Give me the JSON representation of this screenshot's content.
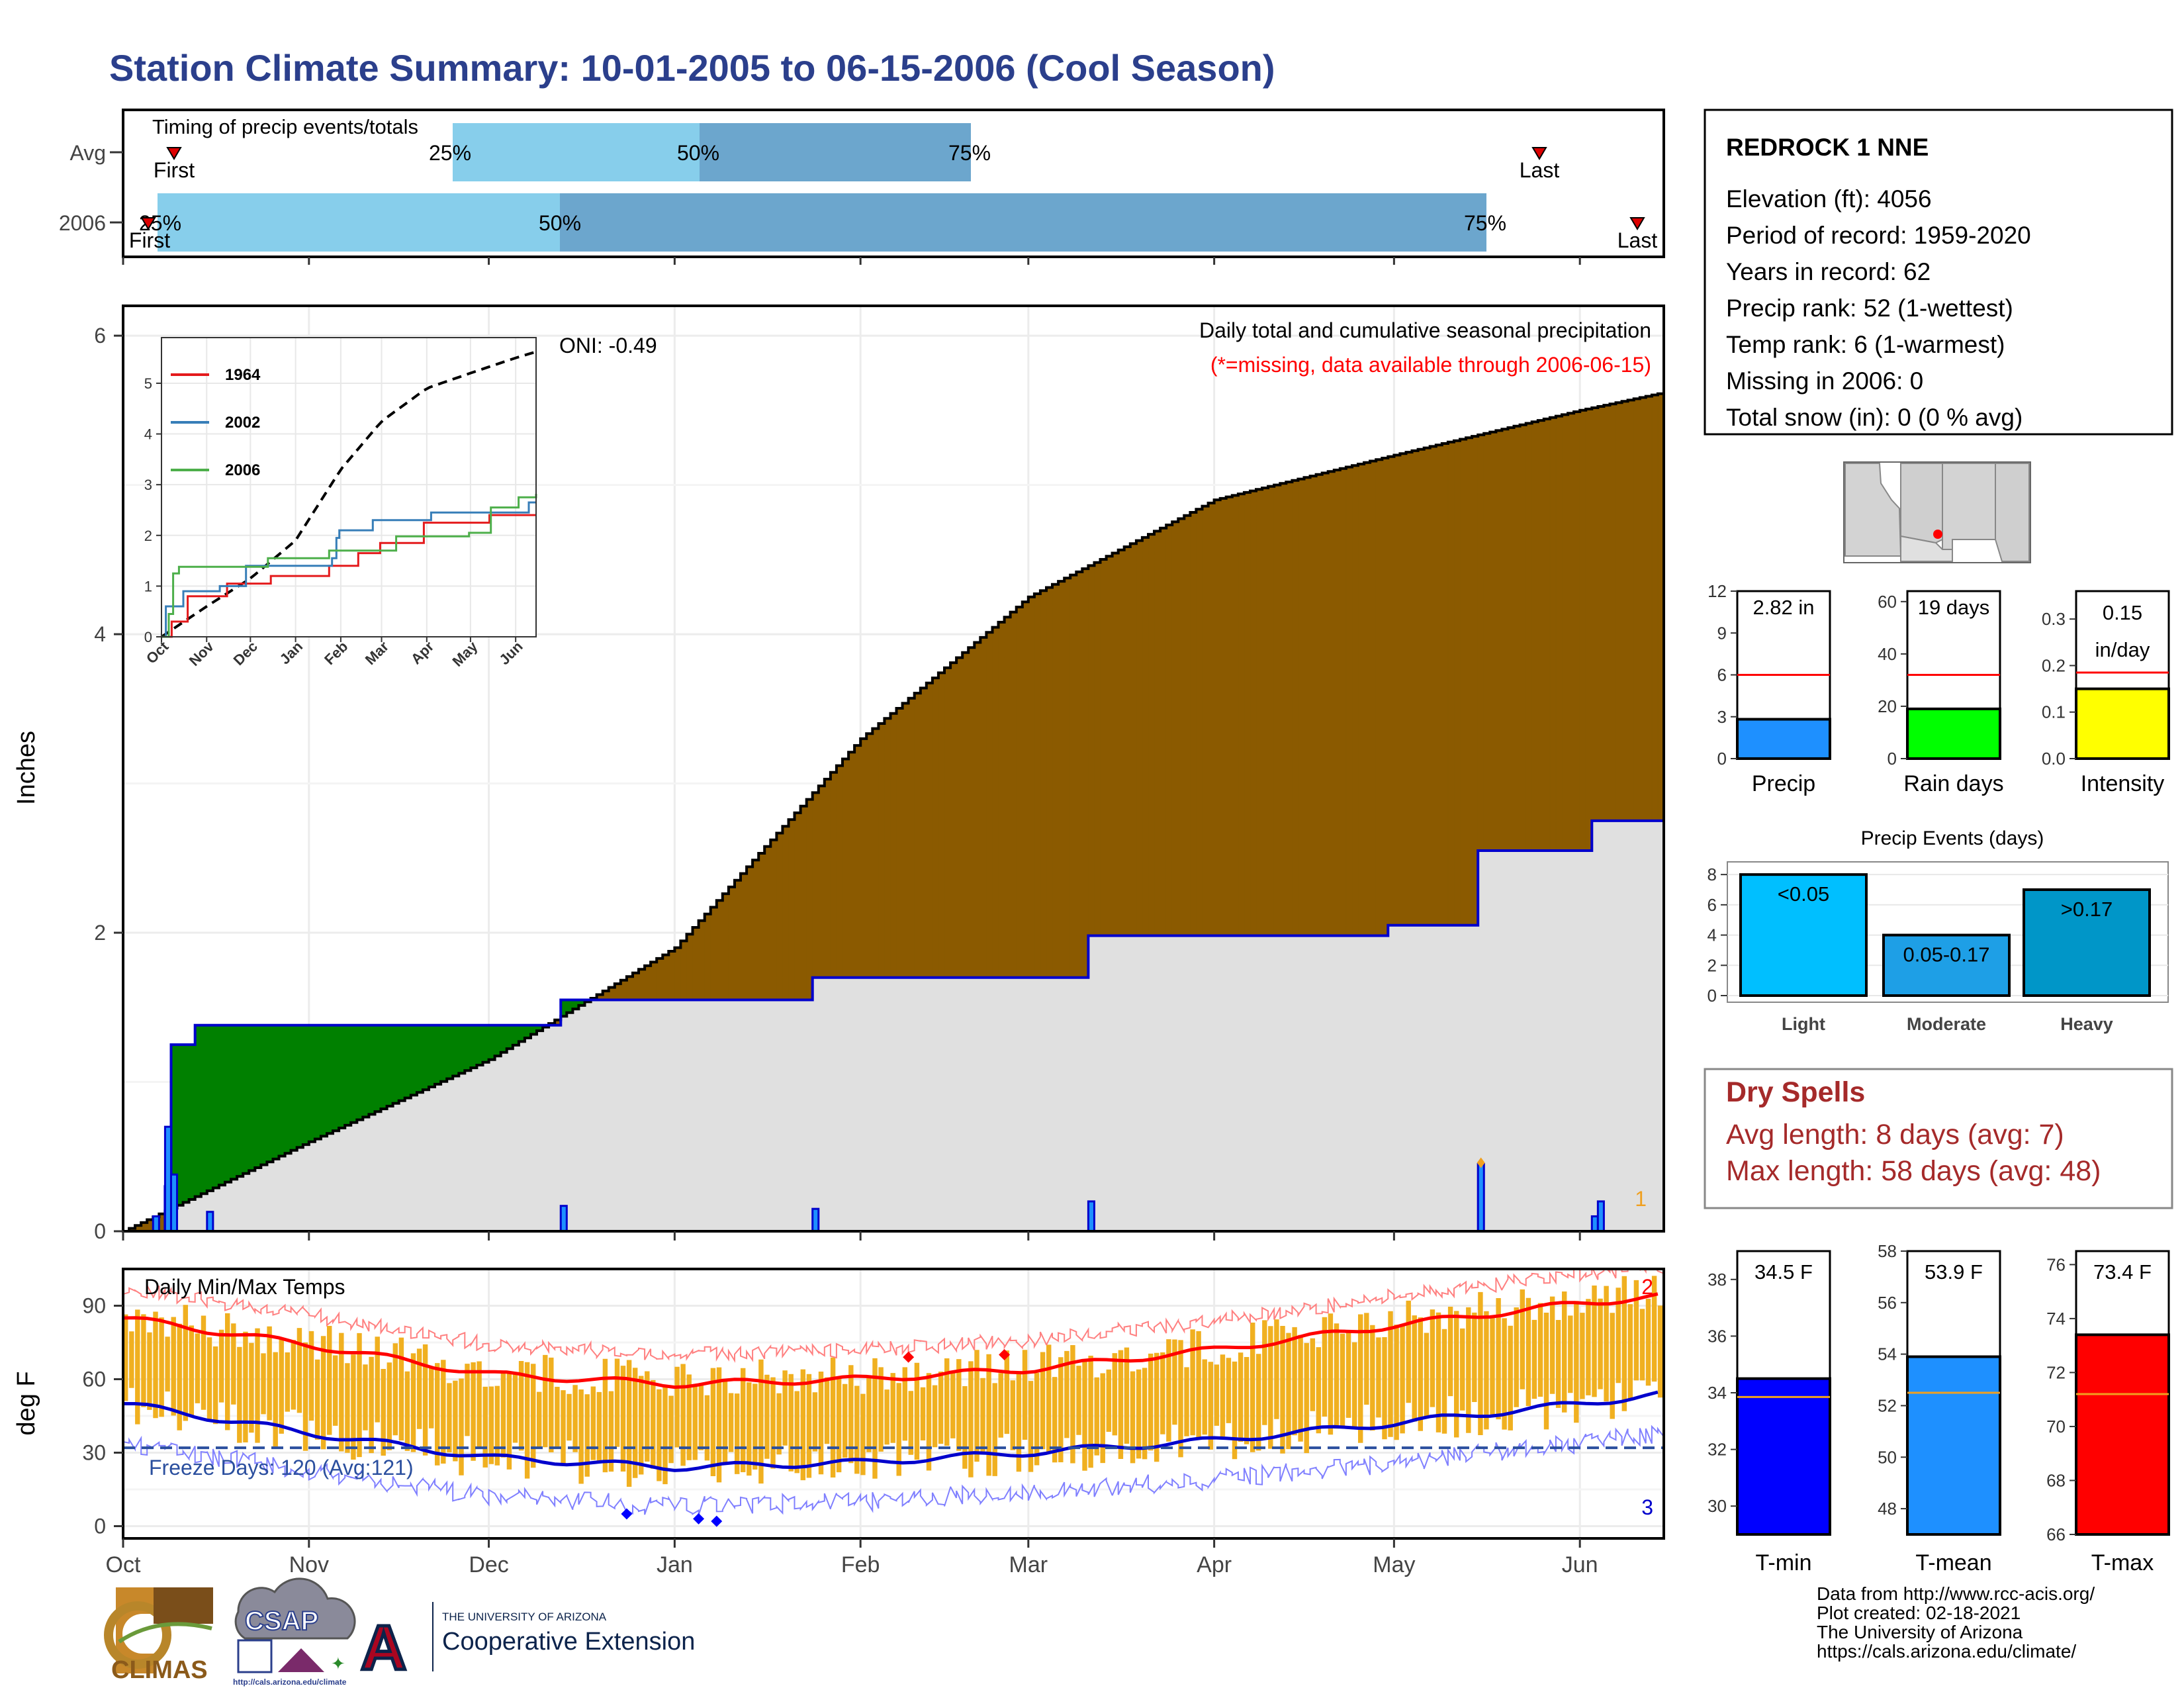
{
  "title": "Station Climate Summary: 10-01-2005 to 06-15-2006 (Cool Season)",
  "colors": {
    "title": "#2b3f8c",
    "cum_avg_fill": "#8b5a00",
    "cum_obs_area": "#e0e0e0",
    "surplus_fill": "#008000",
    "obs_line": "#0000cc",
    "timing_light": "#87ceeb",
    "timing_dark": "#6ca6cd",
    "temp_bars": "#f0b020",
    "max_avg_line": "#ff0000",
    "min_avg_line": "#0000cc",
    "precip_panel": "#1e90ff",
    "raindays_panel": "#00ff00",
    "intensity_panel": "#ffff00",
    "events_light": "#00bfff",
    "events_moderate": "#1e9fe6",
    "events_heavy": "#0096c8",
    "tmin_panel": "#0000ff",
    "tmean_panel": "#1e90ff",
    "tmax_panel": "#ff0000",
    "dry_spells": "#a52a2a"
  },
  "timing": {
    "title": "Timing of precip events/totals",
    "rows": [
      {
        "label": "Avg",
        "first_label": "First",
        "last_label": "Last",
        "p25": "25%",
        "p50": "50%",
        "p75": "75%"
      },
      {
        "label": "2006",
        "first_label": "First",
        "last_label": "Last",
        "p25": "25%",
        "p50": "50%",
        "p75": "75%"
      }
    ]
  },
  "precip_panel": {
    "ylabel": "Inches",
    "yticks": [
      "0",
      "2",
      "4",
      "6"
    ],
    "subtitle": "Daily total and cumulative seasonal precipitation",
    "note": "(*=missing, data available through 2006-06-15)",
    "oni": "ONI: -0.49",
    "corner_label": "1"
  },
  "inset": {
    "yticks": [
      "0",
      "1",
      "2",
      "3",
      "4",
      "5"
    ],
    "xticks": [
      "Oct",
      "Nov",
      "Dec",
      "Jan",
      "Feb",
      "Mar",
      "Apr",
      "May",
      "Jun"
    ],
    "legend": [
      {
        "name": "1964",
        "color": "#e41a1c"
      },
      {
        "name": "2002",
        "color": "#377eb8"
      },
      {
        "name": "2006",
        "color": "#4daf4a"
      }
    ]
  },
  "temp_panel": {
    "title": "Daily Min/Max Temps",
    "ylabel": "deg F",
    "yticks": [
      "0",
      "30",
      "60",
      "90"
    ],
    "freeze": "Freeze Days: 120 (Avg:121)",
    "label_max": "2",
    "label_min": "3"
  },
  "month_ticks": [
    "Oct",
    "Nov",
    "Dec",
    "Jan",
    "Feb",
    "Mar",
    "Apr",
    "May",
    "Jun"
  ],
  "station": {
    "name": "REDROCK 1 NNE",
    "lines": [
      "Elevation (ft): 4056",
      "Period of record: 1959-2020",
      "Years in record: 62",
      "Precip rank: 52 (1-wettest)",
      "Temp rank: 6 (1-warmest)",
      "Missing in 2006: 0",
      "Total snow (in): 0 (0 % avg)"
    ]
  },
  "summary_bars": [
    {
      "label": "Precip",
      "value_text": "2.82 in",
      "value": 2.82,
      "avg": 6.0,
      "yticks": [
        "0",
        "3",
        "6",
        "9",
        "12"
      ],
      "ymax": 12
    },
    {
      "label": "Rain days",
      "value_text": "19 days",
      "value": 19,
      "avg": 32,
      "yticks": [
        "0",
        "20",
        "40",
        "60"
      ],
      "ymax": 64
    },
    {
      "label": "Intensity",
      "value_text": "0.15",
      "value_text2": "in/day",
      "value": 0.15,
      "avg": 0.185,
      "yticks": [
        "0.0",
        "0.1",
        "0.2",
        "0.3"
      ],
      "ymax": 0.36
    }
  ],
  "events": {
    "title": "Precip Events (days)",
    "yticks": [
      "0",
      "2",
      "4",
      "6",
      "8"
    ],
    "bars": [
      {
        "label": "Light",
        "range": "<0.05",
        "value": 8
      },
      {
        "label": "Moderate",
        "range": "0.05-0.17",
        "value": 4
      },
      {
        "label": "Heavy",
        "range": ">0.17",
        "value": 7
      }
    ]
  },
  "dry_spells": {
    "title": "Dry Spells",
    "avg_line": "Avg length: 8 days (avg: 7)",
    "max_line": "Max length: 58 days (avg: 48)"
  },
  "temp_bars": [
    {
      "label": "T-min",
      "value_text": "34.5 F",
      "value": 34.5,
      "avg": 33.85,
      "yticks": [
        "30",
        "32",
        "34",
        "36",
        "38"
      ],
      "ymin": 29,
      "ymax": 39
    },
    {
      "label": "T-mean",
      "value_text": "53.9 F",
      "value": 53.9,
      "avg": 52.5,
      "yticks": [
        "48",
        "50",
        "52",
        "54",
        "56",
        "58"
      ],
      "ymin": 47,
      "ymax": 58
    },
    {
      "label": "T-max",
      "value_text": "73.4 F",
      "value": 73.4,
      "avg": 71.2,
      "yticks": [
        "66",
        "68",
        "70",
        "72",
        "74",
        "76"
      ],
      "ymin": 66,
      "ymax": 76.5
    }
  ],
  "footer": [
    "Data from http://www.rcc-acis.org/",
    "Plot created: 02-18-2021",
    "The University of Arizona",
    "https://cals.arizona.edu/climate/"
  ],
  "logos": {
    "climas": "CLIMAS",
    "csap": "CSAP",
    "csap_url": "http://cals.arizona.edu/climate",
    "ua_small": "THE UNIVERSITY OF ARIZONA",
    "ua_big": "Cooperative Extension"
  },
  "chart_data": [
    {
      "type": "area",
      "title": "Daily total and cumulative seasonal precipitation",
      "ylabel": "Inches",
      "ylim": [
        0,
        6.2
      ],
      "x_range": [
        "2005-10-01",
        "2006-06-15"
      ],
      "cumulative_avg": {
        "x": [
          "2005-10-01",
          "2005-11-01",
          "2005-12-01",
          "2006-01-01",
          "2006-02-01",
          "2006-03-01",
          "2006-04-01",
          "2006-05-01",
          "2006-06-01",
          "2006-06-15"
        ],
        "y": [
          0,
          0.6,
          1.15,
          1.9,
          3.3,
          4.25,
          4.9,
          5.2,
          5.5,
          5.62
        ]
      },
      "cumulative_2006": {
        "x": [
          "2005-10-01",
          "2005-10-08",
          "2005-10-09",
          "2005-10-13",
          "2005-12-13",
          "2006-01-24",
          "2006-03-11",
          "2006-04-30",
          "2006-05-15",
          "2006-06-03",
          "2006-06-15"
        ],
        "y": [
          0,
          0.3,
          1.25,
          1.38,
          1.55,
          1.7,
          1.98,
          2.05,
          2.55,
          2.75,
          2.82
        ]
      },
      "daily_precip": {
        "x": [
          "2005-10-06",
          "2005-10-08",
          "2005-10-09",
          "2005-10-15",
          "2005-12-13",
          "2006-01-24",
          "2006-03-11",
          "2006-05-15",
          "2006-06-03",
          "2006-06-04"
        ],
        "y": [
          0.1,
          0.7,
          0.38,
          0.13,
          0.17,
          0.15,
          0.2,
          0.45,
          0.1,
          0.2
        ]
      }
    },
    {
      "type": "line",
      "title": "Daily Min/Max Temps",
      "ylabel": "deg F",
      "ylim": [
        -5,
        105
      ],
      "x_range": [
        "2005-10-01",
        "2006-06-15"
      ],
      "avg_max": {
        "x": [
          "2005-10-01",
          "2005-11-01",
          "2005-12-01",
          "2006-01-01",
          "2006-02-01",
          "2006-03-01",
          "2006-04-01",
          "2006-05-01",
          "2006-06-01",
          "2006-06-15"
        ],
        "y": [
          85,
          74,
          62,
          58,
          60,
          64,
          72,
          82,
          91,
          94
        ]
      },
      "avg_min": {
        "x": [
          "2005-10-01",
          "2005-11-01",
          "2005-12-01",
          "2006-01-01",
          "2006-02-01",
          "2006-03-01",
          "2006-04-01",
          "2006-05-01",
          "2006-06-01",
          "2006-06-15"
        ],
        "y": [
          50,
          38,
          28,
          24,
          26,
          30,
          35,
          42,
          50,
          54
        ]
      },
      "freeze_line": 32
    }
  ]
}
